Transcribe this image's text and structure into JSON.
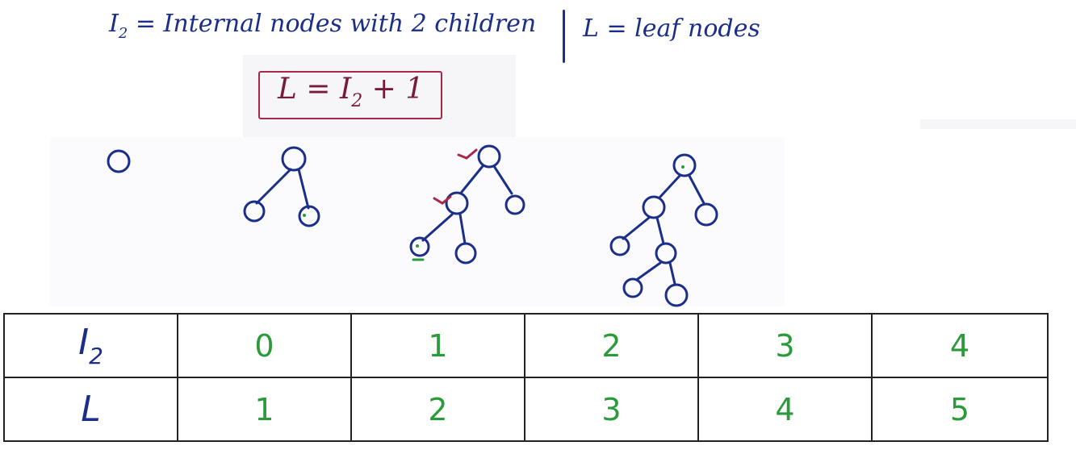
{
  "heading": {
    "left_prefix": "I",
    "left_sub": "2",
    "left_rest": " = Internal nodes with 2 children",
    "right_text": "L = leaf nodes"
  },
  "formula": {
    "lhs": "L = I",
    "sub": "2",
    "rhs": " + 1"
  },
  "table": {
    "rows": [
      {
        "label": "I",
        "label_sub": "2",
        "values": [
          "0",
          "1",
          "2",
          "3",
          "4"
        ]
      },
      {
        "label": "L",
        "label_sub": "",
        "values": [
          "1",
          "2",
          "3",
          "4",
          "5"
        ]
      }
    ]
  },
  "colors": {
    "ink_blue": "#1b2f8a",
    "ink_green": "#2a9a3a",
    "ink_red": "#a8284a"
  }
}
